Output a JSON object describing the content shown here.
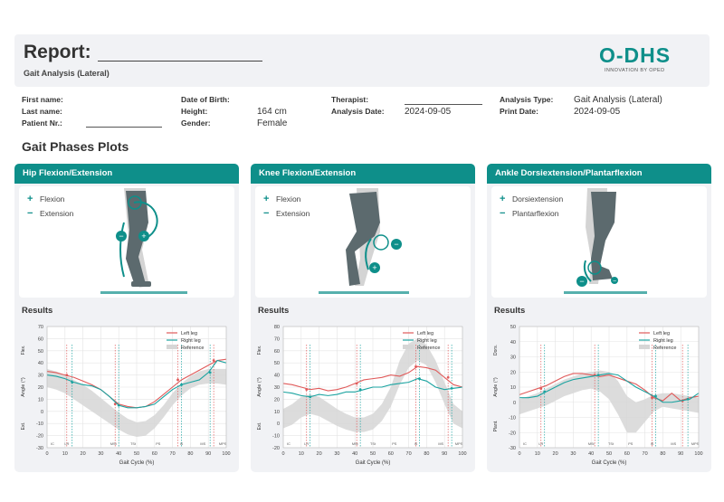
{
  "header": {
    "title": "Report:",
    "subtitle": "Gait Analysis (Lateral)",
    "logo_text": "O-DHS",
    "logo_tagline": "INNOVATION BY OPED"
  },
  "patient": {
    "first_name_label": "First name:",
    "last_name_label": "Last name:",
    "patient_nr_label": "Patient Nr.:",
    "dob_label": "Date of Birth:",
    "height_label": "Height:",
    "height_value": "164 cm",
    "gender_label": "Gender:",
    "gender_value": "Female",
    "therapist_label": "Therapist:",
    "analysis_date_label": "Analysis Date:",
    "analysis_date_value": "2024-09-05",
    "analysis_type_label": "Analysis Type:",
    "analysis_type_value": "Gait Analysis (Lateral)",
    "print_date_label": "Print Date:",
    "print_date_value": "2024-09-05"
  },
  "section_title": "Gait Phases Plots",
  "results_label": "Results",
  "colors": {
    "accent": "#0e8f8a",
    "left": "#e05a5a",
    "right": "#1aa3a0",
    "reference": "#d6d6d6"
  },
  "panels": [
    {
      "title": "Hip Flexion/Extension",
      "plus_label": "Flexion",
      "minus_label": "Extension"
    },
    {
      "title": "Knee Flexion/Extension",
      "plus_label": "Flexion",
      "minus_label": "Extension"
    },
    {
      "title": "Ankle Dorsiextension/Plantarflexion",
      "plus_label": "Dorsiextension",
      "minus_label": "Plantarflexion"
    }
  ],
  "chart_data": [
    {
      "type": "line",
      "xlabel": "Gait Cycle (%)",
      "ylabel": "Angle (°)",
      "ylabel_top": "Flex.",
      "ylabel_bottom": "Ext.",
      "xlim": [
        0,
        100
      ],
      "ylim": [
        -30,
        70
      ],
      "yticks": [
        -30,
        -20,
        -10,
        0,
        10,
        20,
        30,
        40,
        50,
        60,
        70
      ],
      "xticks": [
        0,
        10,
        20,
        30,
        40,
        50,
        60,
        70,
        80,
        90,
        100
      ],
      "legend_entries": [
        "Left leg",
        "Right leg",
        "Reference"
      ],
      "phase_labels": [
        {
          "x": 3,
          "label": "IC"
        },
        {
          "x": 11,
          "label": "LR"
        },
        {
          "x": 37,
          "label": "MSt"
        },
        {
          "x": 48,
          "label": "TSt"
        },
        {
          "x": 62,
          "label": "PS"
        },
        {
          "x": 75,
          "label": "IS"
        },
        {
          "x": 87,
          "label": "MS"
        },
        {
          "x": 98,
          "label": "MPS"
        }
      ],
      "x": [
        0,
        5,
        10,
        15,
        20,
        25,
        30,
        35,
        40,
        45,
        50,
        55,
        60,
        65,
        70,
        75,
        80,
        85,
        90,
        95,
        100
      ],
      "series": [
        {
          "name": "Left leg",
          "values": [
            33,
            32,
            30,
            28,
            25,
            22,
            18,
            12,
            6,
            4,
            3,
            4,
            8,
            14,
            20,
            26,
            30,
            34,
            38,
            42,
            43
          ]
        },
        {
          "name": "Right leg",
          "values": [
            30,
            29,
            27,
            24,
            22,
            21,
            18,
            12,
            5,
            3,
            3,
            4,
            6,
            12,
            18,
            22,
            24,
            26,
            32,
            42,
            40
          ]
        }
      ],
      "reference_band": {
        "upper": [
          35,
          33,
          30,
          26,
          22,
          17,
          11,
          5,
          -1,
          -6,
          -9,
          -8,
          -3,
          5,
          15,
          23,
          29,
          33,
          35,
          35,
          35
        ],
        "lower": [
          20,
          18,
          15,
          10,
          5,
          0,
          -5,
          -10,
          -15,
          -19,
          -21,
          -20,
          -14,
          -5,
          5,
          13,
          19,
          22,
          23,
          23,
          22
        ]
      },
      "phase_markers_left": [
        11,
        38,
        73,
        93
      ],
      "phase_markers_right": [
        14,
        40,
        75,
        91
      ]
    },
    {
      "type": "line",
      "xlabel": "Gait Cycle (%)",
      "ylabel": "Angle (°)",
      "ylabel_top": "Flex.",
      "ylabel_bottom": "Ext.",
      "xlim": [
        0,
        100
      ],
      "ylim": [
        -20,
        80
      ],
      "yticks": [
        -20,
        -10,
        0,
        10,
        20,
        30,
        40,
        50,
        60,
        70,
        80
      ],
      "xticks": [
        0,
        10,
        20,
        30,
        40,
        50,
        60,
        70,
        80,
        90,
        100
      ],
      "legend_entries": [
        "Left leg",
        "Right leg",
        "Reference"
      ],
      "phase_labels": [
        {
          "x": 3,
          "label": "IC"
        },
        {
          "x": 13,
          "label": "LR"
        },
        {
          "x": 40,
          "label": "MSt"
        },
        {
          "x": 50,
          "label": "TSt"
        },
        {
          "x": 62,
          "label": "PS"
        },
        {
          "x": 74,
          "label": "IS"
        },
        {
          "x": 88,
          "label": "MS"
        },
        {
          "x": 98,
          "label": "MPS"
        }
      ],
      "x": [
        0,
        5,
        10,
        15,
        20,
        25,
        30,
        35,
        40,
        45,
        50,
        55,
        60,
        65,
        70,
        75,
        80,
        85,
        90,
        95,
        100
      ],
      "series": [
        {
          "name": "Left leg",
          "values": [
            33,
            32,
            30,
            28,
            29,
            27,
            28,
            30,
            33,
            36,
            37,
            38,
            40,
            39,
            42,
            47,
            46,
            44,
            38,
            32,
            30
          ]
        },
        {
          "name": "Right leg",
          "values": [
            26,
            25,
            23,
            22,
            24,
            23,
            24,
            26,
            26,
            28,
            30,
            30,
            32,
            33,
            34,
            37,
            35,
            30,
            28,
            29,
            30
          ]
        }
      ],
      "reference_band": {
        "upper": [
          12,
          16,
          22,
          24,
          22,
          17,
          12,
          8,
          5,
          5,
          8,
          16,
          30,
          52,
          66,
          70,
          65,
          52,
          34,
          16,
          10
        ],
        "lower": [
          -4,
          -1,
          5,
          8,
          6,
          2,
          -2,
          -5,
          -7,
          -7,
          -5,
          2,
          14,
          32,
          46,
          52,
          48,
          34,
          16,
          0,
          -4
        ]
      },
      "phase_markers_left": [
        13,
        41,
        74,
        92
      ],
      "phase_markers_right": [
        15,
        43,
        76,
        94
      ]
    },
    {
      "type": "line",
      "xlabel": "Gait Cycle (%)",
      "ylabel": "Angle (°)",
      "ylabel_top": "Dors.",
      "ylabel_bottom": "Plant.",
      "xlim": [
        0,
        100
      ],
      "ylim": [
        -30,
        50
      ],
      "yticks": [
        -30,
        -20,
        -10,
        0,
        10,
        20,
        30,
        40,
        50
      ],
      "xticks": [
        0,
        10,
        20,
        30,
        40,
        50,
        60,
        70,
        80,
        90,
        100
      ],
      "legend_entries": [
        "Left leg",
        "Right leg",
        "Reference"
      ],
      "phase_labels": [
        {
          "x": 3,
          "label": "IC"
        },
        {
          "x": 12,
          "label": "LR"
        },
        {
          "x": 40,
          "label": "MSt"
        },
        {
          "x": 51,
          "label": "TSt"
        },
        {
          "x": 62,
          "label": "PS"
        },
        {
          "x": 74,
          "label": "IS"
        },
        {
          "x": 86,
          "label": "MS"
        },
        {
          "x": 98,
          "label": "MPS"
        }
      ],
      "x": [
        0,
        5,
        10,
        15,
        20,
        25,
        30,
        35,
        40,
        45,
        50,
        55,
        60,
        65,
        70,
        75,
        80,
        85,
        90,
        95,
        100
      ],
      "series": [
        {
          "name": "Left leg",
          "values": [
            5,
            7,
            9,
            11,
            14,
            17,
            19,
            19,
            18,
            17,
            18,
            16,
            14,
            12,
            8,
            3,
            1,
            6,
            1,
            3,
            4
          ]
        },
        {
          "name": "Right leg",
          "values": [
            3,
            3,
            4,
            7,
            10,
            13,
            15,
            16,
            17,
            18,
            19,
            18,
            14,
            10,
            7,
            4,
            0,
            0,
            1,
            2,
            6
          ]
        }
      ],
      "reference_band": {
        "upper": [
          2,
          4,
          6,
          9,
          12,
          15,
          17,
          19,
          20,
          21,
          20,
          14,
          4,
          0,
          2,
          5,
          6,
          6,
          5,
          4,
          3
        ],
        "lower": [
          -8,
          -6,
          -4,
          -2,
          1,
          4,
          6,
          8,
          9,
          7,
          2,
          -8,
          -20,
          -20,
          -13,
          -6,
          -3,
          -4,
          -5,
          -6,
          -7
        ]
      },
      "phase_markers_left": [
        12,
        42,
        74,
        91
      ],
      "phase_markers_right": [
        14,
        44,
        76,
        94
      ]
    }
  ]
}
